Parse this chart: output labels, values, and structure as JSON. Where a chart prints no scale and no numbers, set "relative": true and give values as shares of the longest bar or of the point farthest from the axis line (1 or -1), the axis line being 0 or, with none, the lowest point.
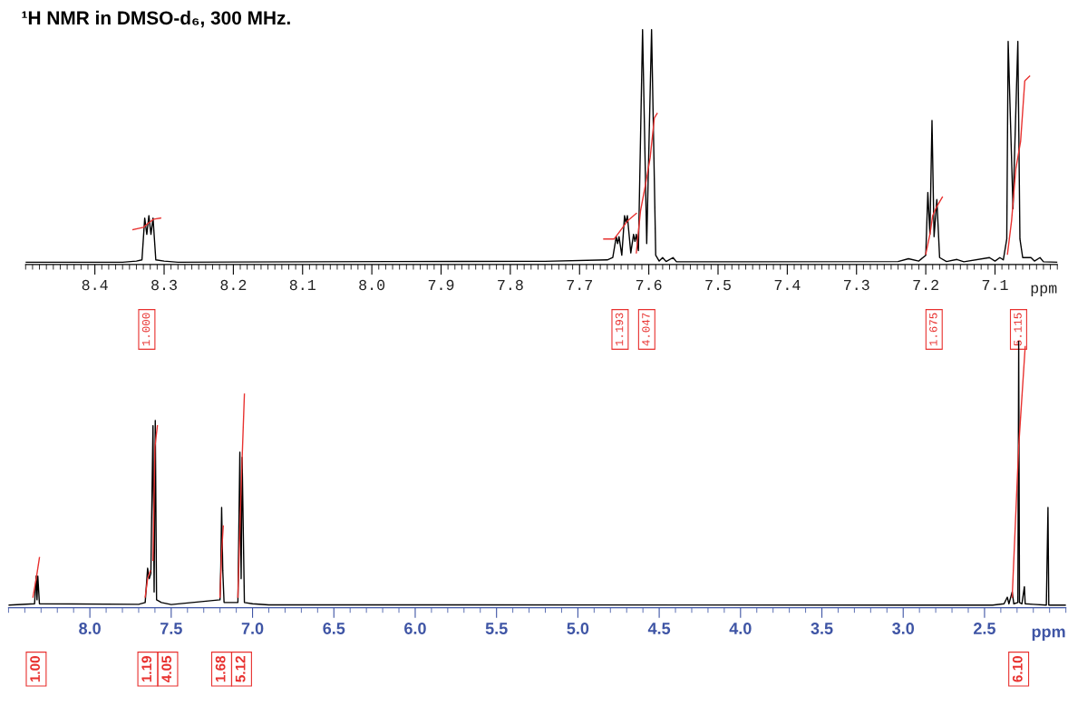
{
  "chart_data": [
    {
      "type": "line",
      "title": "¹H NMR in DMSO-d₆, 300 MHz.",
      "relative": true,
      "xlabel": "ppm",
      "xlim": [
        8.5,
        7.01
      ],
      "xticks": [
        8.4,
        8.3,
        8.2,
        8.1,
        {
          "value": 8.0,
          "label": "8.0"
        },
        7.9,
        7.8,
        7.7,
        7.6,
        7.5,
        7.4,
        7.3,
        7.2,
        7.1
      ],
      "tick_labels": "x",
      "series": [
        {
          "color": "#000000",
          "x": [
            8.5,
            8.36,
            8.34,
            8.332,
            8.328,
            8.325,
            8.322,
            8.319,
            8.316,
            8.312,
            8.3,
            8.28,
            7.97,
            7.75,
            7.66,
            7.652,
            7.647,
            7.645,
            7.643,
            7.639,
            7.635,
            7.633,
            7.631,
            7.626,
            7.622,
            7.62,
            7.618,
            7.615,
            7.609,
            7.603,
            7.596,
            7.59,
            7.585,
            7.58,
            7.575,
            7.565,
            7.56,
            7.45,
            7.24,
            7.225,
            7.21,
            7.2,
            7.197,
            7.194,
            7.191,
            7.188,
            7.184,
            7.18,
            7.17,
            7.155,
            7.145,
            7.108,
            7.1,
            7.093,
            7.088,
            7.083,
            7.081,
            7.074,
            7.067,
            7.064,
            7.06,
            7.048,
            7.043,
            7.035,
            7.03,
            7.01
          ],
          "values": [
            0,
            0,
            0.005,
            0.01,
            0.19,
            0.12,
            0.2,
            0.12,
            0.19,
            0.01,
            0.005,
            0,
            0.003,
            0.004,
            0.01,
            0.02,
            0.11,
            0.08,
            0.11,
            0.03,
            0.2,
            0.17,
            0.2,
            0.04,
            0.12,
            0.09,
            0.12,
            0.05,
            1.0,
            0.08,
            1.0,
            0.03,
            0.005,
            0.02,
            0.003,
            0.02,
            0.002,
            0.002,
            0.003,
            0.015,
            0.005,
            0.03,
            0.3,
            0.12,
            0.61,
            0.11,
            0.27,
            0.02,
            0.003,
            0.012,
            0.002,
            0.02,
            0.005,
            0.02,
            0.01,
            0.1,
            0.95,
            0.23,
            0.95,
            0.1,
            0.02,
            0.02,
            0.005,
            0.02,
            0.002,
            0
          ]
        },
        {
          "color": "#e8312f",
          "x": [
            8.345,
            8.33,
            8.322,
            8.315,
            8.305
          ],
          "values": [
            0.14,
            0.15,
            0.17,
            0.185,
            0.19
          ]
        },
        {
          "color": "#e8312f",
          "x": [
            7.665,
            7.65,
            7.64,
            7.63,
            7.618
          ],
          "values": [
            0.1,
            0.1,
            0.14,
            0.18,
            0.21
          ]
        },
        {
          "color": "#e8312f",
          "x": [
            7.618,
            7.612,
            7.605,
            7.598,
            7.592,
            7.588
          ],
          "values": [
            0.04,
            0.22,
            0.33,
            0.45,
            0.62,
            0.64
          ]
        },
        {
          "color": "#e8312f",
          "x": [
            7.2,
            7.194,
            7.19,
            7.184,
            7.176
          ],
          "values": [
            0.035,
            0.12,
            0.2,
            0.24,
            0.28
          ]
        },
        {
          "color": "#e8312f",
          "x": [
            7.082,
            7.076,
            7.07,
            7.063,
            7.057,
            7.05
          ],
          "values": [
            0.035,
            0.18,
            0.4,
            0.52,
            0.78,
            0.8
          ]
        }
      ],
      "annotations": [
        "1.000",
        "1.193",
        "4.047",
        "1.675",
        "5.115"
      ]
    },
    {
      "type": "line",
      "relative": true,
      "xlabel": "ppm",
      "xlim": [
        8.5,
        2.0
      ],
      "xticks": [
        {
          "value": 8.0,
          "label": "8.0"
        },
        7.5,
        {
          "value": 7.0,
          "label": "7.0"
        },
        6.5,
        {
          "value": 6.0,
          "label": "6.0"
        },
        5.5,
        {
          "value": 5.0,
          "label": "5.0"
        },
        4.5,
        {
          "value": 4.0,
          "label": "4.0"
        },
        3.5,
        {
          "value": 3.0,
          "label": "3.0"
        },
        2.5
      ],
      "tick_labels": "x",
      "series": [
        {
          "color": "#000000",
          "x": [
            8.5,
            8.34,
            8.33,
            8.325,
            8.32,
            8.31,
            7.7,
            7.66,
            7.645,
            7.635,
            7.625,
            7.612,
            7.605,
            7.598,
            7.59,
            7.56,
            7.5,
            7.2,
            7.195,
            7.19,
            7.183,
            7.175,
            7.09,
            7.078,
            7.07,
            7.064,
            7.05,
            7.0,
            6.9,
            2.45,
            2.38,
            2.36,
            2.35,
            2.33,
            2.32,
            2.295,
            2.29,
            2.285,
            2.27,
            2.255,
            2.25,
            2.2,
            2.12,
            2.11,
            2.105,
            2.0
          ],
          "values": [
            0,
            0.005,
            0.11,
            0.02,
            0.11,
            0.005,
            0.003,
            0.01,
            0.14,
            0.1,
            0.12,
            0.68,
            0.05,
            0.7,
            0.02,
            0.01,
            0.002,
            0.02,
            0.15,
            0.37,
            0.13,
            0.01,
            0.01,
            0.58,
            0.1,
            0.56,
            0.01,
            0.005,
            0.001,
            0,
            0.005,
            0.03,
            0.005,
            0.05,
            0.005,
            0.01,
            1.0,
            0.01,
            0.005,
            0.07,
            0.005,
            0.003,
            0,
            0.37,
            0,
            0
          ]
        },
        {
          "color": "#e8312f",
          "x": [
            8.35,
            8.33,
            8.31
          ],
          "values": [
            0.03,
            0.1,
            0.18
          ]
        },
        {
          "color": "#e8312f",
          "x": [
            7.66,
            7.645,
            7.628
          ],
          "values": [
            0.03,
            0.1,
            0.13
          ]
        },
        {
          "color": "#e8312f",
          "x": [
            7.612,
            7.6,
            7.585
          ],
          "values": [
            0.17,
            0.6,
            0.68
          ]
        },
        {
          "color": "#e8312f",
          "x": [
            7.2,
            7.19,
            7.18
          ],
          "values": [
            0.03,
            0.2,
            0.3
          ]
        },
        {
          "color": "#e8312f",
          "x": [
            7.09,
            7.07,
            7.05
          ],
          "values": [
            0.03,
            0.45,
            0.8
          ]
        },
        {
          "color": "#e8312f",
          "x": [
            2.33,
            2.29,
            2.25
          ],
          "values": [
            0.03,
            0.6,
            0.98
          ]
        }
      ],
      "annotations": [
        "1.00",
        "1.19",
        "4.05",
        "1.68",
        "5.12",
        "6.10"
      ]
    }
  ]
}
